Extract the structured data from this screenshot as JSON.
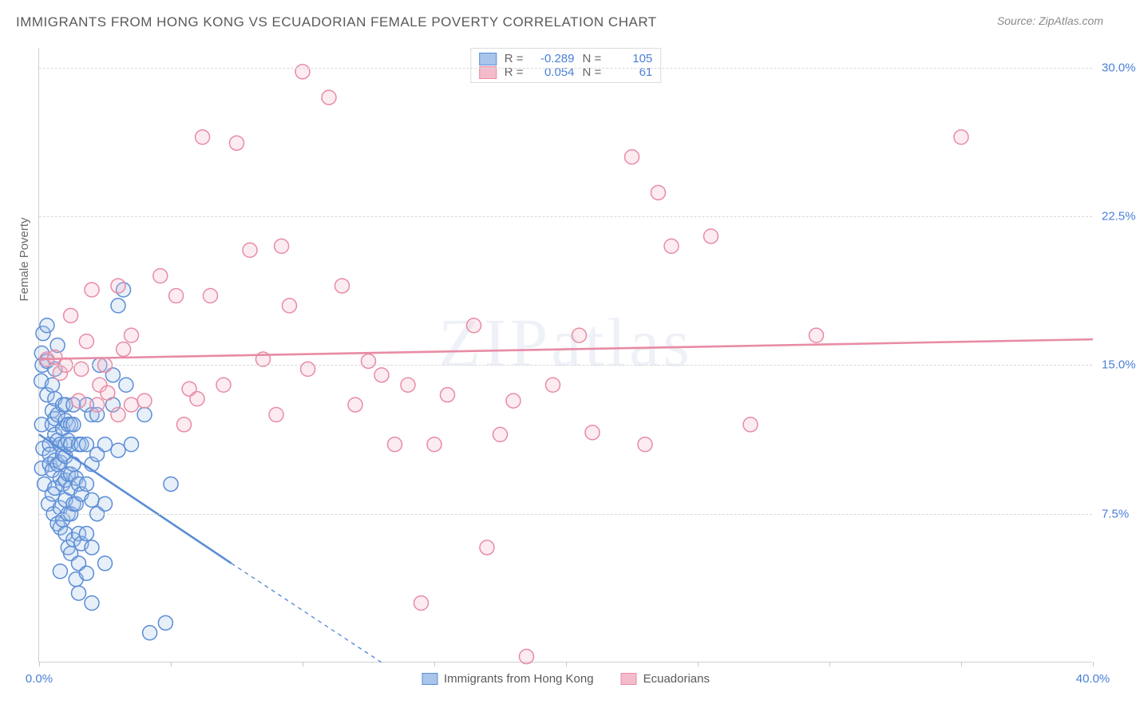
{
  "title": "IMMIGRANTS FROM HONG KONG VS ECUADORIAN FEMALE POVERTY CORRELATION CHART",
  "source_label": "Source:",
  "source_name": "ZipAtlas.com",
  "watermark": "ZIPatlas",
  "yaxis_label": "Female Poverty",
  "chart": {
    "type": "scatter",
    "background_color": "#ffffff",
    "grid_color": "#d8d8d8",
    "axis_color": "#d0d0d0",
    "xlim": [
      0,
      40
    ],
    "ylim": [
      0,
      31
    ],
    "xticks": [
      0,
      5,
      10,
      15,
      20,
      25,
      30,
      35,
      40
    ],
    "xtick_labels": {
      "0": "0.0%",
      "40": "40.0%"
    },
    "yticks": [
      7.5,
      15.0,
      22.5,
      30.0
    ],
    "ytick_labels": [
      "7.5%",
      "15.0%",
      "22.5%",
      "30.0%"
    ],
    "tick_color": "#4a7fd8",
    "tick_fontsize": 15,
    "marker_radius": 9,
    "marker_stroke_width": 1.5,
    "marker_fill_opacity": 0.28,
    "trend_line_width": 2.6
  },
  "series": [
    {
      "name": "Immigrants from Hong Kong",
      "color_stroke": "#5b8dd6",
      "color_fill": "#a9c5ea",
      "R": "-0.289",
      "N": "105",
      "trend": {
        "x1": 0,
        "y1": 11.5,
        "x2": 7.3,
        "y2": 5.0,
        "extrap_x2": 13.0,
        "extrap_y2": 0.0
      },
      "points": [
        [
          0.15,
          16.6
        ],
        [
          0.1,
          15.6
        ],
        [
          0.12,
          15.0
        ],
        [
          0.08,
          14.2
        ],
        [
          0.1,
          12.0
        ],
        [
          0.15,
          10.8
        ],
        [
          0.1,
          9.8
        ],
        [
          0.2,
          9.0
        ],
        [
          0.3,
          17.0
        ],
        [
          0.3,
          15.2
        ],
        [
          0.3,
          13.5
        ],
        [
          0.35,
          8.0
        ],
        [
          0.4,
          11.0
        ],
        [
          0.4,
          10.5
        ],
        [
          0.4,
          10.0
        ],
        [
          0.5,
          14.0
        ],
        [
          0.5,
          12.7
        ],
        [
          0.5,
          12.0
        ],
        [
          0.5,
          9.7
        ],
        [
          0.5,
          8.5
        ],
        [
          0.55,
          7.5
        ],
        [
          0.6,
          14.8
        ],
        [
          0.6,
          13.3
        ],
        [
          0.6,
          12.3
        ],
        [
          0.6,
          11.5
        ],
        [
          0.6,
          10.2
        ],
        [
          0.6,
          8.8
        ],
        [
          0.7,
          16.0
        ],
        [
          0.7,
          12.5
        ],
        [
          0.7,
          11.2
        ],
        [
          0.7,
          10.0
        ],
        [
          0.7,
          7.0
        ],
        [
          0.8,
          11.0
        ],
        [
          0.8,
          10.1
        ],
        [
          0.8,
          9.3
        ],
        [
          0.8,
          7.8
        ],
        [
          0.8,
          6.8
        ],
        [
          0.8,
          4.6
        ],
        [
          0.9,
          13.0
        ],
        [
          0.9,
          11.8
        ],
        [
          0.9,
          10.5
        ],
        [
          0.9,
          9.0
        ],
        [
          0.9,
          7.2
        ],
        [
          1.0,
          13.0
        ],
        [
          1.0,
          12.2
        ],
        [
          1.0,
          11.0
        ],
        [
          1.0,
          10.4
        ],
        [
          1.0,
          9.2
        ],
        [
          1.0,
          8.2
        ],
        [
          1.0,
          6.5
        ],
        [
          1.1,
          12.0
        ],
        [
          1.1,
          11.2
        ],
        [
          1.1,
          9.5
        ],
        [
          1.1,
          7.5
        ],
        [
          1.1,
          5.8
        ],
        [
          1.2,
          12.0
        ],
        [
          1.2,
          11.0
        ],
        [
          1.2,
          9.5
        ],
        [
          1.2,
          8.8
        ],
        [
          1.2,
          7.5
        ],
        [
          1.2,
          5.5
        ],
        [
          1.3,
          13.0
        ],
        [
          1.3,
          12.0
        ],
        [
          1.3,
          10.0
        ],
        [
          1.3,
          8.0
        ],
        [
          1.3,
          6.2
        ],
        [
          1.4,
          9.3
        ],
        [
          1.4,
          8.0
        ],
        [
          1.4,
          4.2
        ],
        [
          1.5,
          11.0
        ],
        [
          1.5,
          9.0
        ],
        [
          1.5,
          6.5
        ],
        [
          1.5,
          5.0
        ],
        [
          1.5,
          3.5
        ],
        [
          1.6,
          11.0
        ],
        [
          1.6,
          8.5
        ],
        [
          1.6,
          6.0
        ],
        [
          1.8,
          13.0
        ],
        [
          1.8,
          11.0
        ],
        [
          1.8,
          9.0
        ],
        [
          1.8,
          6.5
        ],
        [
          1.8,
          4.5
        ],
        [
          2.0,
          12.5
        ],
        [
          2.0,
          10.0
        ],
        [
          2.0,
          8.2
        ],
        [
          2.0,
          5.8
        ],
        [
          2.0,
          3.0
        ],
        [
          2.2,
          12.5
        ],
        [
          2.2,
          10.5
        ],
        [
          2.2,
          7.5
        ],
        [
          2.3,
          15.0
        ],
        [
          2.5,
          11.0
        ],
        [
          2.5,
          8.0
        ],
        [
          2.5,
          5.0
        ],
        [
          2.8,
          14.5
        ],
        [
          2.8,
          13.0
        ],
        [
          3.0,
          18.0
        ],
        [
          3.0,
          10.7
        ],
        [
          3.2,
          18.8
        ],
        [
          3.3,
          14.0
        ],
        [
          3.5,
          11.0
        ],
        [
          4.0,
          12.5
        ],
        [
          4.2,
          1.5
        ],
        [
          4.8,
          2.0
        ],
        [
          5.0,
          9.0
        ]
      ]
    },
    {
      "name": "Ecuadorians",
      "color_stroke": "#e88ba4",
      "color_fill": "#f4bccb",
      "R": "0.054",
      "N": "61",
      "trend": {
        "x1": 0,
        "y1": 15.3,
        "x2": 40,
        "y2": 16.3
      },
      "points": [
        [
          0.3,
          15.3
        ],
        [
          0.6,
          15.4
        ],
        [
          0.8,
          14.6
        ],
        [
          1.0,
          15.0
        ],
        [
          1.2,
          17.5
        ],
        [
          1.5,
          13.2
        ],
        [
          1.6,
          14.8
        ],
        [
          1.8,
          16.2
        ],
        [
          2.0,
          18.8
        ],
        [
          2.2,
          13.0
        ],
        [
          2.3,
          14.0
        ],
        [
          2.5,
          15.0
        ],
        [
          2.6,
          13.6
        ],
        [
          3.0,
          19.0
        ],
        [
          3.0,
          12.5
        ],
        [
          3.2,
          15.8
        ],
        [
          3.5,
          16.5
        ],
        [
          3.5,
          13.0
        ],
        [
          4.0,
          13.2
        ],
        [
          4.6,
          19.5
        ],
        [
          5.2,
          18.5
        ],
        [
          5.5,
          12.0
        ],
        [
          5.7,
          13.8
        ],
        [
          6.0,
          13.3
        ],
        [
          6.2,
          26.5
        ],
        [
          6.5,
          18.5
        ],
        [
          7.0,
          14.0
        ],
        [
          7.5,
          26.2
        ],
        [
          8.0,
          20.8
        ],
        [
          8.5,
          15.3
        ],
        [
          9.0,
          12.5
        ],
        [
          9.2,
          21.0
        ],
        [
          9.5,
          18.0
        ],
        [
          10.0,
          29.8
        ],
        [
          10.2,
          14.8
        ],
        [
          11.0,
          28.5
        ],
        [
          11.5,
          19.0
        ],
        [
          12.0,
          13.0
        ],
        [
          12.5,
          15.2
        ],
        [
          13.0,
          14.5
        ],
        [
          13.5,
          11.0
        ],
        [
          14.0,
          14.0
        ],
        [
          14.5,
          3.0
        ],
        [
          15.0,
          11.0
        ],
        [
          15.5,
          13.5
        ],
        [
          16.5,
          17.0
        ],
        [
          17.0,
          5.8
        ],
        [
          17.5,
          11.5
        ],
        [
          18.0,
          13.2
        ],
        [
          18.5,
          0.3
        ],
        [
          19.5,
          14.0
        ],
        [
          20.5,
          16.5
        ],
        [
          21.0,
          11.6
        ],
        [
          22.5,
          25.5
        ],
        [
          23.0,
          11.0
        ],
        [
          23.5,
          23.7
        ],
        [
          24.0,
          21.0
        ],
        [
          25.5,
          21.5
        ],
        [
          27.0,
          12.0
        ],
        [
          29.5,
          16.5
        ],
        [
          35.0,
          26.5
        ]
      ]
    }
  ],
  "legend_top": {
    "r_label": "R =",
    "n_label": "N ="
  },
  "legend_bottom": [
    {
      "label": "Immigrants from Hong Kong"
    },
    {
      "label": "Ecuadorians"
    }
  ]
}
